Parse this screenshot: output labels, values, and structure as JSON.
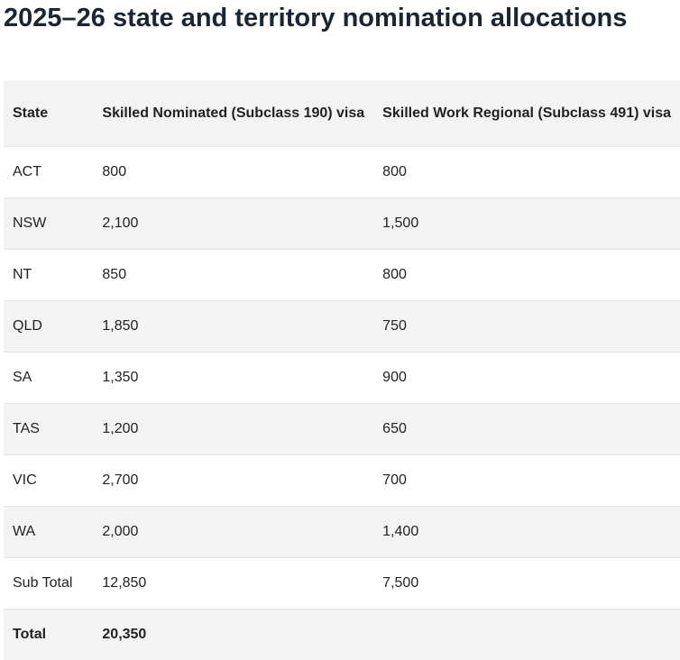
{
  "header": {
    "title": "2025–26 state and territory nomination allocations"
  },
  "table": {
    "columns": [
      "State",
      "Skilled Nominated (Subclass 190) visa",
      "Skilled Work Regional (Subclass 491) visa"
    ],
    "rows": [
      [
        "ACT",
        "800",
        "800"
      ],
      [
        "NSW",
        "2,100",
        "1,500"
      ],
      [
        "NT",
        "850",
        "800"
      ],
      [
        "QLD",
        "1,850",
        "750"
      ],
      [
        "SA",
        "1,350",
        "900"
      ],
      [
        "TAS",
        "1,200",
        "650"
      ],
      [
        "VIC",
        "2,700",
        "700"
      ],
      [
        "WA",
        "2,000",
        "1,400"
      ],
      [
        "Sub Total",
        "12,850",
        "7,500"
      ]
    ],
    "total": [
      "Total",
      "20,350"
    ]
  }
}
